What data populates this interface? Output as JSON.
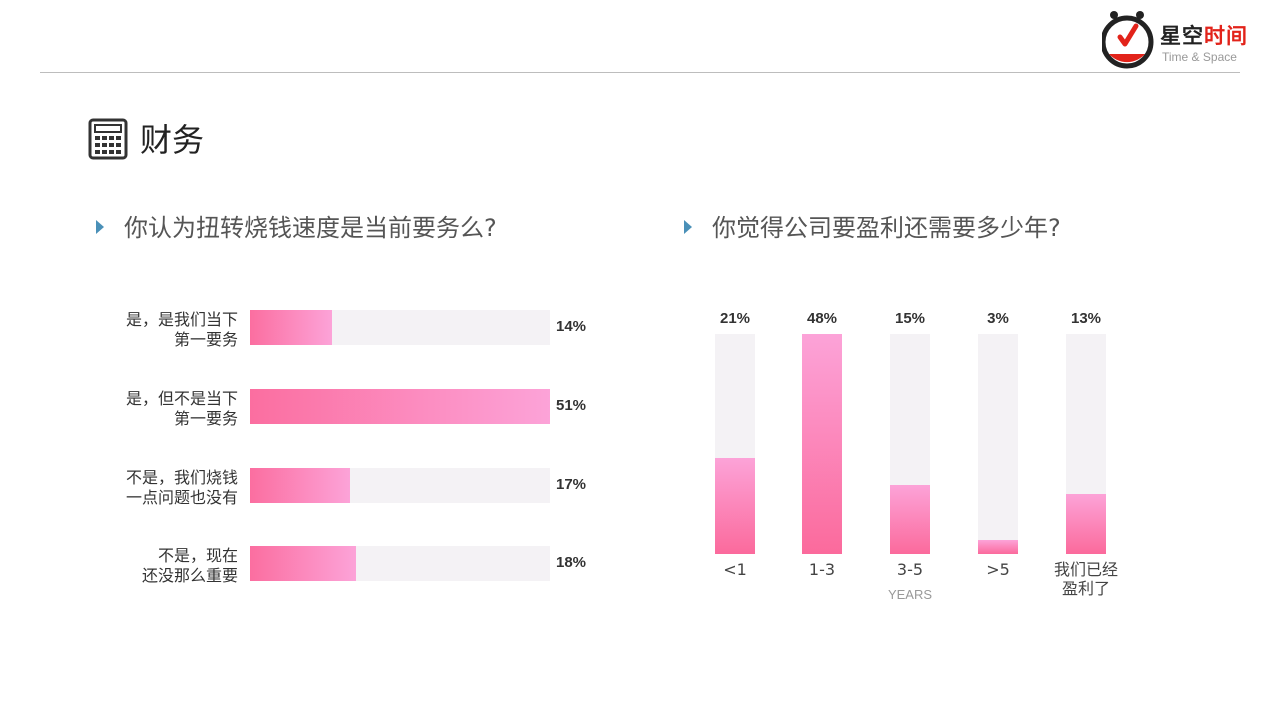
{
  "logo": {
    "cn_dark": "星空",
    "cn_red": "时间",
    "en": "Time & Space",
    "accent": "#e2231a"
  },
  "section": {
    "title": "财务",
    "icon": "calculator-icon"
  },
  "questions": {
    "q1": "你认为扭转烧钱速度是当前要务么?",
    "q2": "你觉得公司要盈利还需要多少年?"
  },
  "colors": {
    "bar_start": "#fb6ea0",
    "bar_end": "#fca3d8",
    "track": "#f4f2f5",
    "arrow": "#4a90b8"
  },
  "chart_data": [
    {
      "type": "bar",
      "orientation": "horizontal",
      "categories": [
        [
          "是，是我们当下",
          "第一要务"
        ],
        [
          "是，但不是当下",
          "第一要务"
        ],
        [
          "不是，我们烧钱",
          "一点问题也没有"
        ],
        [
          "不是，现在",
          "还没那么重要"
        ]
      ],
      "values": [
        14,
        51,
        17,
        18
      ],
      "value_labels": [
        "14%",
        "51%",
        "17%",
        "18%"
      ],
      "xlim": [
        0,
        51
      ]
    },
    {
      "type": "bar",
      "orientation": "vertical",
      "categories": [
        [
          "<1"
        ],
        [
          "1-3"
        ],
        [
          "3-5"
        ],
        [
          ">5"
        ],
        [
          "我们已经",
          "盈利了"
        ]
      ],
      "values": [
        21,
        48,
        15,
        3,
        13
      ],
      "value_labels": [
        "21%",
        "48%",
        "15%",
        "3%",
        "13%"
      ],
      "xlabel": "YEARS",
      "ylim": [
        0,
        48
      ]
    }
  ]
}
